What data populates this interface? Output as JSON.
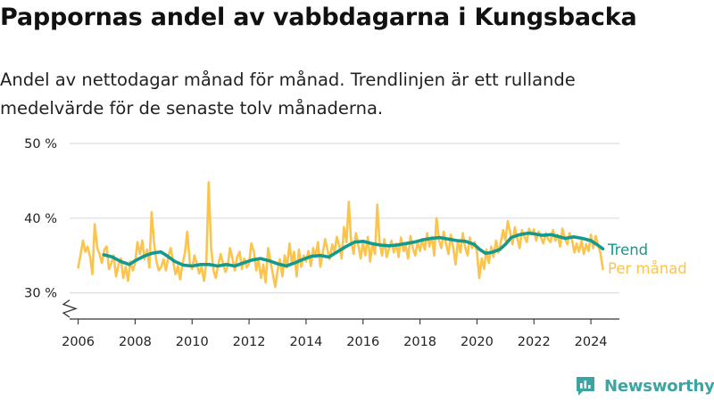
{
  "title": "Pappornas andel av vabbdagarna i Kungsbacka",
  "subtitle": "Andel av nettodagar månad för månad. Trendlinjen är ett rullande medelvärde för de senaste tolv månaderna.",
  "brand": {
    "name": "Newsworthy",
    "icon": "newsworthy-logo-icon"
  },
  "colors": {
    "monthly": "#fbc44c",
    "trend": "#14998f",
    "grid": "#dddddd",
    "axis": "#333333",
    "text": "#222222"
  },
  "chart_data": {
    "type": "line",
    "title": "Pappornas andel av vabbdagarna i Kungsbacka",
    "subtitle": "Andel av nettodagar månad för månad. Trendlinjen är ett rullande medelvärde för de senaste tolv månaderna.",
    "xlabel": "",
    "ylabel": "",
    "unit": "%",
    "ylim": [
      26.5,
      50
    ],
    "y_axis_break": true,
    "xlim": [
      2005.7,
      2025.0
    ],
    "x_ticks": [
      2006,
      2008,
      2010,
      2012,
      2014,
      2016,
      2018,
      2020,
      2022,
      2024
    ],
    "y_ticks": [
      {
        "value": 30,
        "label": "30 %"
      },
      {
        "value": 40,
        "label": "40 %"
      },
      {
        "value": 50,
        "label": "50 %"
      }
    ],
    "grid": true,
    "legend": "right, inline at line ends",
    "series": [
      {
        "name": "Per månad",
        "color": "#fbc44c",
        "points": [
          [
            2006.0,
            33.4
          ],
          [
            2006.08,
            35.0
          ],
          [
            2006.17,
            37.0
          ],
          [
            2006.25,
            35.5
          ],
          [
            2006.33,
            36.2
          ],
          [
            2006.42,
            34.8
          ],
          [
            2006.5,
            32.5
          ],
          [
            2006.58,
            39.2
          ],
          [
            2006.67,
            36.0
          ],
          [
            2006.75,
            35.2
          ],
          [
            2006.83,
            34.0
          ],
          [
            2006.92,
            35.8
          ],
          [
            2007.0,
            36.2
          ],
          [
            2007.08,
            33.2
          ],
          [
            2007.17,
            34.0
          ],
          [
            2007.25,
            35.0
          ],
          [
            2007.33,
            32.2
          ],
          [
            2007.42,
            33.8
          ],
          [
            2007.5,
            34.6
          ],
          [
            2007.58,
            32.0
          ],
          [
            2007.67,
            33.5
          ],
          [
            2007.75,
            31.6
          ],
          [
            2007.83,
            34.2
          ],
          [
            2007.92,
            33.0
          ],
          [
            2008.0,
            34.0
          ],
          [
            2008.08,
            36.8
          ],
          [
            2008.17,
            35.2
          ],
          [
            2008.25,
            37.0
          ],
          [
            2008.33,
            34.5
          ],
          [
            2008.42,
            35.8
          ],
          [
            2008.5,
            33.4
          ],
          [
            2008.58,
            40.8
          ],
          [
            2008.67,
            36.5
          ],
          [
            2008.75,
            34.2
          ],
          [
            2008.83,
            33.0
          ],
          [
            2008.92,
            33.5
          ],
          [
            2009.0,
            34.5
          ],
          [
            2009.08,
            33.0
          ],
          [
            2009.17,
            35.0
          ],
          [
            2009.25,
            36.0
          ],
          [
            2009.33,
            34.2
          ],
          [
            2009.42,
            32.5
          ],
          [
            2009.5,
            33.6
          ],
          [
            2009.58,
            31.8
          ],
          [
            2009.67,
            34.0
          ],
          [
            2009.75,
            35.4
          ],
          [
            2009.83,
            38.2
          ],
          [
            2009.92,
            34.0
          ],
          [
            2010.0,
            33.2
          ],
          [
            2010.08,
            35.0
          ],
          [
            2010.17,
            33.8
          ],
          [
            2010.25,
            32.6
          ],
          [
            2010.33,
            33.5
          ],
          [
            2010.42,
            31.6
          ],
          [
            2010.5,
            34.2
          ],
          [
            2010.58,
            44.8
          ],
          [
            2010.67,
            36.0
          ],
          [
            2010.75,
            33.0
          ],
          [
            2010.83,
            32.0
          ],
          [
            2010.92,
            33.8
          ],
          [
            2011.0,
            35.2
          ],
          [
            2011.08,
            34.0
          ],
          [
            2011.17,
            32.8
          ],
          [
            2011.25,
            33.6
          ],
          [
            2011.33,
            36.0
          ],
          [
            2011.42,
            34.5
          ],
          [
            2011.5,
            33.0
          ],
          [
            2011.58,
            34.8
          ],
          [
            2011.67,
            35.5
          ],
          [
            2011.75,
            33.2
          ],
          [
            2011.83,
            34.6
          ],
          [
            2011.92,
            33.4
          ],
          [
            2012.0,
            34.0
          ],
          [
            2012.08,
            36.6
          ],
          [
            2012.17,
            35.5
          ],
          [
            2012.25,
            33.0
          ],
          [
            2012.33,
            34.5
          ],
          [
            2012.42,
            32.0
          ],
          [
            2012.5,
            33.8
          ],
          [
            2012.58,
            31.4
          ],
          [
            2012.67,
            36.0
          ],
          [
            2012.75,
            34.2
          ],
          [
            2012.83,
            32.6
          ],
          [
            2012.92,
            30.8
          ],
          [
            2013.0,
            33.0
          ],
          [
            2013.08,
            34.5
          ],
          [
            2013.17,
            32.2
          ],
          [
            2013.25,
            35.0
          ],
          [
            2013.33,
            33.4
          ],
          [
            2013.42,
            36.6
          ],
          [
            2013.5,
            34.0
          ],
          [
            2013.58,
            35.5
          ],
          [
            2013.67,
            32.2
          ],
          [
            2013.75,
            35.8
          ],
          [
            2013.83,
            33.5
          ],
          [
            2013.92,
            35.0
          ],
          [
            2014.0,
            34.2
          ],
          [
            2014.08,
            35.6
          ],
          [
            2014.17,
            33.6
          ],
          [
            2014.25,
            36.0
          ],
          [
            2014.33,
            34.8
          ],
          [
            2014.42,
            36.8
          ],
          [
            2014.5,
            33.5
          ],
          [
            2014.58,
            35.2
          ],
          [
            2014.67,
            37.2
          ],
          [
            2014.75,
            35.8
          ],
          [
            2014.83,
            34.5
          ],
          [
            2014.92,
            36.5
          ],
          [
            2015.0,
            35.5
          ],
          [
            2015.08,
            37.5
          ],
          [
            2015.17,
            36.2
          ],
          [
            2015.25,
            34.6
          ],
          [
            2015.33,
            38.8
          ],
          [
            2015.42,
            36.8
          ],
          [
            2015.5,
            42.2
          ],
          [
            2015.58,
            37.0
          ],
          [
            2015.67,
            35.2
          ],
          [
            2015.75,
            38.0
          ],
          [
            2015.83,
            36.5
          ],
          [
            2015.92,
            34.6
          ],
          [
            2016.0,
            36.8
          ],
          [
            2016.08,
            35.0
          ],
          [
            2016.17,
            37.5
          ],
          [
            2016.25,
            34.2
          ],
          [
            2016.33,
            36.6
          ],
          [
            2016.42,
            35.2
          ],
          [
            2016.5,
            41.8
          ],
          [
            2016.58,
            36.8
          ],
          [
            2016.67,
            35.0
          ],
          [
            2016.75,
            37.2
          ],
          [
            2016.83,
            34.8
          ],
          [
            2016.92,
            36.0
          ],
          [
            2017.0,
            37.0
          ],
          [
            2017.08,
            35.4
          ],
          [
            2017.17,
            36.6
          ],
          [
            2017.25,
            34.8
          ],
          [
            2017.33,
            37.4
          ],
          [
            2017.42,
            35.6
          ],
          [
            2017.5,
            36.4
          ],
          [
            2017.58,
            34.6
          ],
          [
            2017.67,
            37.6
          ],
          [
            2017.75,
            36.0
          ],
          [
            2017.83,
            35.0
          ],
          [
            2017.92,
            36.8
          ],
          [
            2018.0,
            35.6
          ],
          [
            2018.08,
            37.2
          ],
          [
            2018.17,
            35.8
          ],
          [
            2018.25,
            38.0
          ],
          [
            2018.33,
            36.2
          ],
          [
            2018.42,
            37.5
          ],
          [
            2018.5,
            35.0
          ],
          [
            2018.58,
            40.0
          ],
          [
            2018.67,
            37.0
          ],
          [
            2018.75,
            36.0
          ],
          [
            2018.83,
            38.2
          ],
          [
            2018.92,
            36.5
          ],
          [
            2019.0,
            35.2
          ],
          [
            2019.08,
            37.8
          ],
          [
            2019.17,
            36.0
          ],
          [
            2019.25,
            33.8
          ],
          [
            2019.33,
            37.0
          ],
          [
            2019.42,
            35.4
          ],
          [
            2019.5,
            38.0
          ],
          [
            2019.58,
            36.2
          ],
          [
            2019.67,
            35.0
          ],
          [
            2019.75,
            37.4
          ],
          [
            2019.83,
            36.0
          ],
          [
            2019.92,
            36.8
          ],
          [
            2020.0,
            35.5
          ],
          [
            2020.08,
            32.0
          ],
          [
            2020.17,
            34.6
          ],
          [
            2020.25,
            33.2
          ],
          [
            2020.33,
            35.8
          ],
          [
            2020.42,
            34.0
          ],
          [
            2020.5,
            36.2
          ],
          [
            2020.58,
            34.8
          ],
          [
            2020.67,
            37.0
          ],
          [
            2020.75,
            35.4
          ],
          [
            2020.83,
            36.6
          ],
          [
            2020.92,
            38.4
          ],
          [
            2021.0,
            37.0
          ],
          [
            2021.08,
            39.6
          ],
          [
            2021.17,
            38.0
          ],
          [
            2021.25,
            36.5
          ],
          [
            2021.33,
            38.8
          ],
          [
            2021.42,
            37.2
          ],
          [
            2021.5,
            36.0
          ],
          [
            2021.58,
            38.4
          ],
          [
            2021.67,
            37.5
          ],
          [
            2021.75,
            36.8
          ],
          [
            2021.83,
            38.6
          ],
          [
            2021.92,
            37.8
          ],
          [
            2022.0,
            38.5
          ],
          [
            2022.08,
            37.0
          ],
          [
            2022.17,
            38.2
          ],
          [
            2022.25,
            37.4
          ],
          [
            2022.33,
            36.6
          ],
          [
            2022.42,
            38.0
          ],
          [
            2022.5,
            37.2
          ],
          [
            2022.58,
            36.8
          ],
          [
            2022.67,
            38.4
          ],
          [
            2022.75,
            37.0
          ],
          [
            2022.83,
            37.8
          ],
          [
            2022.92,
            36.2
          ],
          [
            2023.0,
            38.6
          ],
          [
            2023.08,
            37.4
          ],
          [
            2023.17,
            36.5
          ],
          [
            2023.25,
            38.0
          ],
          [
            2023.33,
            37.2
          ],
          [
            2023.42,
            35.4
          ],
          [
            2023.5,
            36.6
          ],
          [
            2023.58,
            35.5
          ],
          [
            2023.67,
            37.0
          ],
          [
            2023.75,
            35.2
          ],
          [
            2023.83,
            36.5
          ],
          [
            2023.92,
            35.6
          ],
          [
            2024.0,
            37.8
          ],
          [
            2024.08,
            36.0
          ],
          [
            2024.17,
            37.6
          ],
          [
            2024.25,
            36.4
          ],
          [
            2024.33,
            35.4
          ],
          [
            2024.42,
            33.2
          ]
        ]
      },
      {
        "name": "Trend",
        "color": "#14998f",
        "points": [
          [
            2006.9,
            35.1
          ],
          [
            2007.2,
            34.8
          ],
          [
            2007.5,
            34.2
          ],
          [
            2007.8,
            33.8
          ],
          [
            2008.0,
            34.3
          ],
          [
            2008.3,
            34.9
          ],
          [
            2008.6,
            35.3
          ],
          [
            2008.9,
            35.5
          ],
          [
            2009.1,
            35.0
          ],
          [
            2009.4,
            34.2
          ],
          [
            2009.7,
            33.7
          ],
          [
            2010.0,
            33.6
          ],
          [
            2010.3,
            33.8
          ],
          [
            2010.6,
            33.8
          ],
          [
            2010.9,
            33.6
          ],
          [
            2011.2,
            33.8
          ],
          [
            2011.5,
            33.6
          ],
          [
            2011.8,
            34.0
          ],
          [
            2012.1,
            34.4
          ],
          [
            2012.4,
            34.6
          ],
          [
            2012.7,
            34.3
          ],
          [
            2013.0,
            33.9
          ],
          [
            2013.3,
            33.6
          ],
          [
            2013.6,
            34.0
          ],
          [
            2013.9,
            34.5
          ],
          [
            2014.2,
            34.9
          ],
          [
            2014.5,
            35.0
          ],
          [
            2014.8,
            34.8
          ],
          [
            2015.1,
            35.5
          ],
          [
            2015.4,
            36.2
          ],
          [
            2015.7,
            36.8
          ],
          [
            2016.0,
            36.9
          ],
          [
            2016.3,
            36.6
          ],
          [
            2016.6,
            36.4
          ],
          [
            2016.9,
            36.3
          ],
          [
            2017.2,
            36.4
          ],
          [
            2017.5,
            36.6
          ],
          [
            2017.8,
            36.8
          ],
          [
            2018.1,
            37.1
          ],
          [
            2018.4,
            37.3
          ],
          [
            2018.7,
            37.4
          ],
          [
            2019.0,
            37.2
          ],
          [
            2019.3,
            37.0
          ],
          [
            2019.6,
            36.9
          ],
          [
            2019.9,
            36.5
          ],
          [
            2020.1,
            35.8
          ],
          [
            2020.3,
            35.3
          ],
          [
            2020.5,
            35.4
          ],
          [
            2020.8,
            35.8
          ],
          [
            2021.0,
            36.5
          ],
          [
            2021.2,
            37.4
          ],
          [
            2021.5,
            37.8
          ],
          [
            2021.8,
            38.0
          ],
          [
            2022.0,
            37.9
          ],
          [
            2022.3,
            37.7
          ],
          [
            2022.6,
            37.8
          ],
          [
            2022.9,
            37.5
          ],
          [
            2023.1,
            37.3
          ],
          [
            2023.4,
            37.5
          ],
          [
            2023.7,
            37.3
          ],
          [
            2024.0,
            37.0
          ],
          [
            2024.2,
            36.5
          ],
          [
            2024.42,
            35.9
          ]
        ]
      }
    ]
  }
}
